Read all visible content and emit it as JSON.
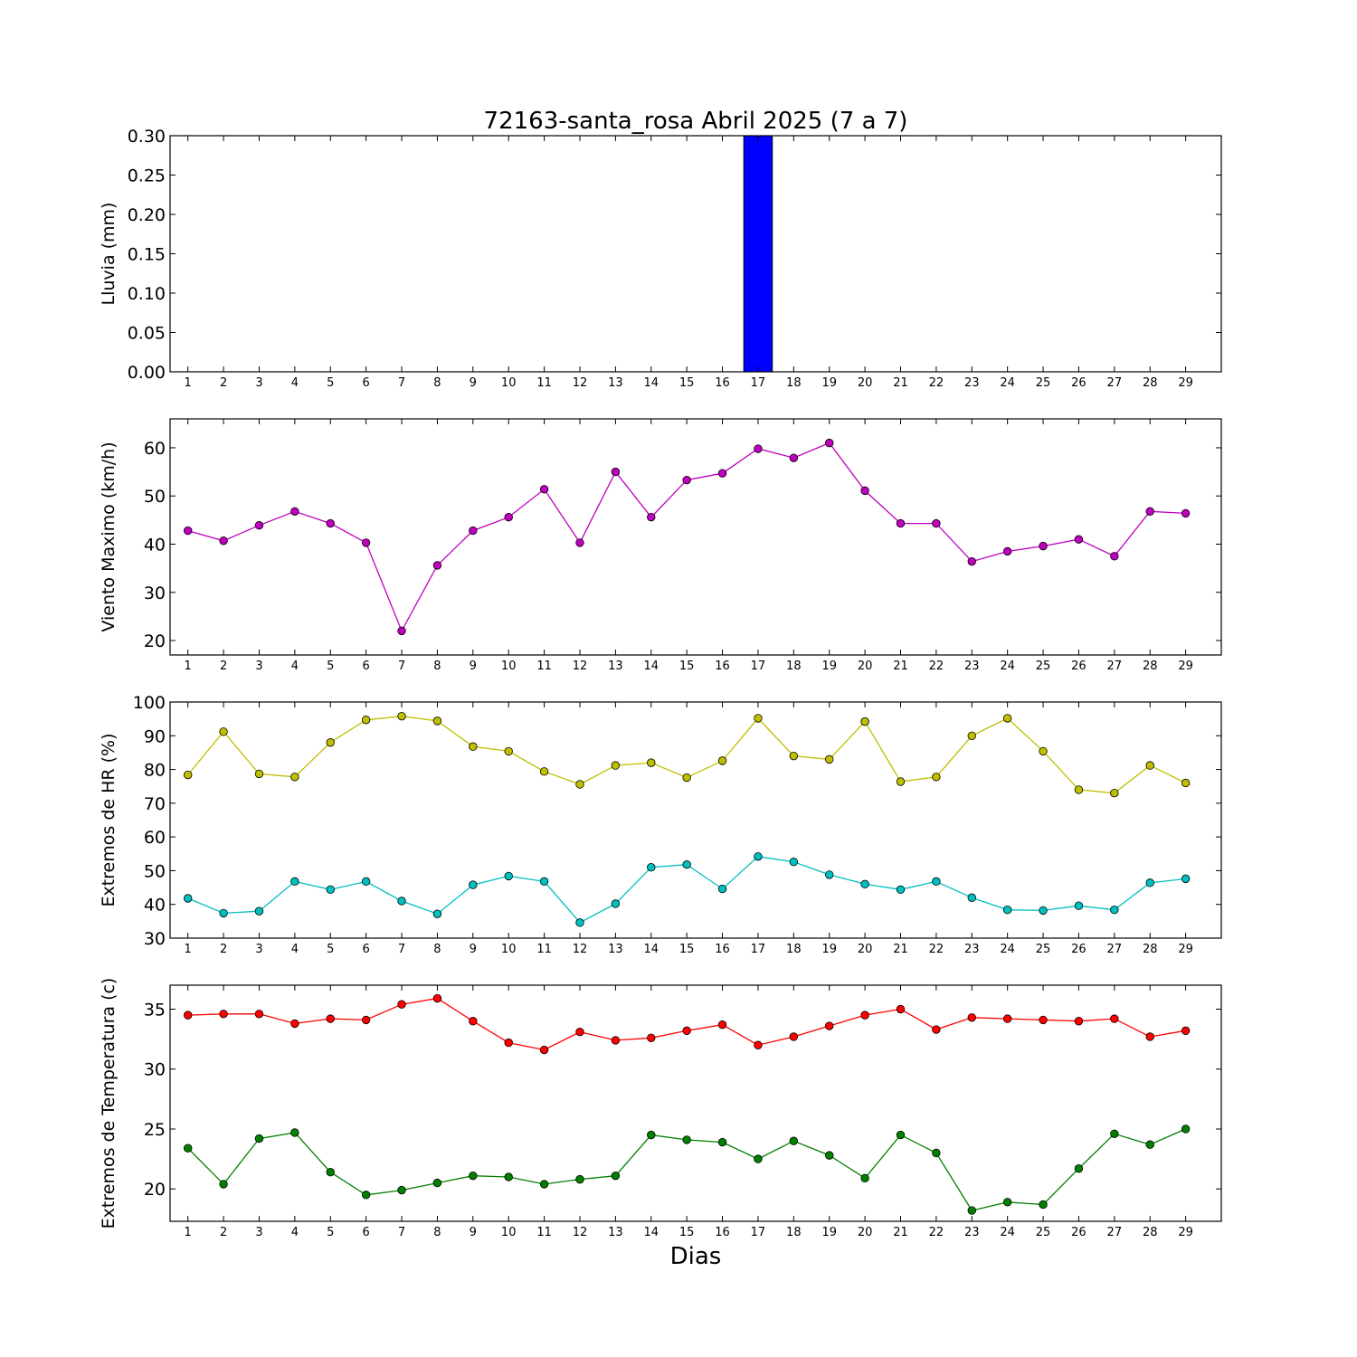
{
  "chart_data": [
    {
      "type": "bar",
      "title": "72163-santa_rosa Abril 2025  (7 a 7)",
      "ylabel": "Lluvia (mm)",
      "xlabel": "",
      "categories": [
        "1",
        "2",
        "3",
        "4",
        "5",
        "6",
        "7",
        "8",
        "9",
        "10",
        "11",
        "12",
        "13",
        "14",
        "15",
        "16",
        "17",
        "18",
        "19",
        "20",
        "21",
        "22",
        "23",
        "24",
        "25",
        "26",
        "27",
        "28",
        "29"
      ],
      "values": [
        0,
        0,
        0,
        0,
        0,
        0,
        0,
        0,
        0,
        0,
        0,
        0,
        0,
        0,
        0,
        0,
        0.3,
        0,
        0,
        0,
        0,
        0,
        0,
        0,
        0,
        0,
        0,
        0,
        0
      ],
      "ylim": [
        0,
        0.3
      ],
      "yticks": [
        0.0,
        0.05,
        0.1,
        0.15,
        0.2,
        0.25,
        0.3
      ],
      "ytick_labels": [
        "0.00",
        "0.05",
        "0.10",
        "0.15",
        "0.20",
        "0.25",
        "0.30"
      ],
      "colors": [
        "#0000ff"
      ]
    },
    {
      "type": "line",
      "ylabel": "Viento Maximo (km/h)",
      "categories": [
        "1",
        "2",
        "3",
        "4",
        "5",
        "6",
        "7",
        "8",
        "9",
        "10",
        "11",
        "12",
        "13",
        "14",
        "15",
        "16",
        "17",
        "18",
        "19",
        "20",
        "21",
        "22",
        "23",
        "24",
        "25",
        "26",
        "27",
        "28",
        "29"
      ],
      "series": [
        {
          "values": [
            42.8,
            40.7,
            43.9,
            46.8,
            44.3,
            40.3,
            22.0,
            35.6,
            42.8,
            45.6,
            51.4,
            40.3,
            55.0,
            45.6,
            53.3,
            54.7,
            59.8,
            57.9,
            61.0,
            51.1,
            44.3,
            44.3,
            36.4,
            38.5,
            39.6,
            41.0,
            37.5,
            46.8,
            46.4
          ],
          "color": "#bf00bf"
        }
      ],
      "ylim": [
        17,
        66
      ],
      "yticks": [
        20,
        30,
        40,
        50,
        60
      ],
      "ytick_labels": [
        "20",
        "30",
        "40",
        "50",
        "60"
      ]
    },
    {
      "type": "line",
      "ylabel": "Extremos de HR (%)",
      "categories": [
        "1",
        "2",
        "3",
        "4",
        "5",
        "6",
        "7",
        "8",
        "9",
        "10",
        "11",
        "12",
        "13",
        "14",
        "15",
        "16",
        "17",
        "18",
        "19",
        "20",
        "21",
        "22",
        "23",
        "24",
        "25",
        "26",
        "27",
        "28",
        "29"
      ],
      "series": [
        {
          "values": [
            78.4,
            91.2,
            78.7,
            77.8,
            88.0,
            94.7,
            95.8,
            94.4,
            86.8,
            85.4,
            79.4,
            75.6,
            81.2,
            82.0,
            77.6,
            82.6,
            95.2,
            84.0,
            83.0,
            94.2,
            76.4,
            77.8,
            90.0,
            95.2,
            85.4,
            74.0,
            73.0,
            81.2,
            76.0
          ],
          "color": "#bfbf00"
        },
        {
          "values": [
            41.8,
            37.4,
            38.0,
            46.8,
            44.4,
            46.8,
            41.0,
            37.2,
            45.8,
            48.4,
            46.8,
            34.6,
            40.2,
            51.0,
            51.8,
            44.6,
            54.2,
            52.6,
            48.8,
            46.0,
            44.4,
            46.8,
            42.0,
            38.4,
            38.2,
            39.6,
            38.4,
            46.4,
            47.6
          ],
          "color": "#00bfbf"
        }
      ],
      "ylim": [
        30,
        100
      ],
      "yticks": [
        30,
        40,
        50,
        60,
        70,
        80,
        90,
        100
      ],
      "ytick_labels": [
        "30",
        "40",
        "50",
        "60",
        "70",
        "80",
        "90",
        "100"
      ]
    },
    {
      "type": "line",
      "ylabel": "Extremos de Temperatura (c)",
      "xlabel": "Dias",
      "categories": [
        "1",
        "2",
        "3",
        "4",
        "5",
        "6",
        "7",
        "8",
        "9",
        "10",
        "11",
        "12",
        "13",
        "14",
        "15",
        "16",
        "17",
        "18",
        "19",
        "20",
        "21",
        "22",
        "23",
        "24",
        "25",
        "26",
        "27",
        "28",
        "29"
      ],
      "series": [
        {
          "values": [
            34.5,
            34.6,
            34.6,
            33.8,
            34.2,
            34.1,
            35.4,
            35.9,
            34.0,
            32.2,
            31.6,
            33.1,
            32.4,
            32.6,
            33.2,
            33.7,
            32.0,
            32.7,
            33.6,
            34.5,
            35.0,
            33.3,
            34.3,
            34.2,
            34.1,
            34.0,
            34.2,
            32.7,
            33.2
          ],
          "color": "#ff0000"
        },
        {
          "values": [
            23.4,
            20.4,
            24.2,
            24.7,
            21.4,
            19.5,
            19.9,
            20.5,
            21.1,
            21.0,
            20.4,
            20.8,
            21.1,
            24.5,
            24.1,
            23.9,
            22.5,
            24.0,
            22.8,
            20.9,
            24.5,
            23.0,
            18.2,
            18.9,
            18.7,
            21.7,
            24.6,
            23.7,
            25.0
          ],
          "color": "#008000"
        }
      ],
      "ylim": [
        17.3,
        37.0
      ],
      "yticks": [
        20,
        25,
        30,
        35
      ],
      "ytick_labels": [
        "20",
        "25",
        "30",
        "35"
      ]
    }
  ]
}
